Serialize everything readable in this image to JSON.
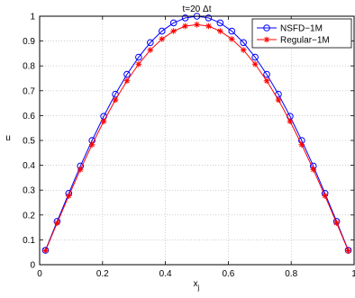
{
  "chart_data": {
    "type": "line",
    "title": "t=20 Δt",
    "xlabel": "x",
    "xlabel_subscript": "j",
    "ylabel": "u",
    "xlim": [
      0,
      1
    ],
    "ylim": [
      0,
      1
    ],
    "xticks": [
      0,
      0.2,
      0.4,
      0.6,
      0.8,
      1
    ],
    "yticks": [
      0,
      0.1,
      0.2,
      0.3,
      0.4,
      0.5,
      0.6,
      0.7,
      0.8,
      0.9,
      1
    ],
    "xtick_labels": [
      "0",
      "0.2",
      "0.4",
      "0.6",
      "0.8",
      "1"
    ],
    "ytick_labels": [
      "0",
      "0.1",
      "0.2",
      "0.3",
      "0.4",
      "0.5",
      "0.6",
      "0.7",
      "0.8",
      "0.9",
      "1"
    ],
    "grid": true,
    "legend_position": "top-right",
    "x": [
      0.0185,
      0.0556,
      0.0926,
      0.1296,
      0.1667,
      0.2037,
      0.2407,
      0.2778,
      0.3148,
      0.3519,
      0.3889,
      0.4259,
      0.463,
      0.5,
      0.537,
      0.5741,
      0.6111,
      0.6481,
      0.6852,
      0.7222,
      0.7593,
      0.7963,
      0.8333,
      0.8704,
      0.9074,
      0.9444,
      0.9815
    ],
    "series": [
      {
        "name": "NSFD−1M",
        "color": "#0000ff",
        "marker": "circle",
        "values": [
          0.058,
          0.174,
          0.287,
          0.397,
          0.5,
          0.597,
          0.686,
          0.766,
          0.835,
          0.894,
          0.94,
          0.973,
          0.993,
          1.0,
          0.993,
          0.973,
          0.94,
          0.894,
          0.835,
          0.766,
          0.686,
          0.597,
          0.5,
          0.397,
          0.287,
          0.174,
          0.058
        ]
      },
      {
        "name": "Regular−1M",
        "color": "#ff0000",
        "marker": "star",
        "values": [
          0.056,
          0.168,
          0.277,
          0.383,
          0.483,
          0.577,
          0.663,
          0.74,
          0.807,
          0.864,
          0.908,
          0.94,
          0.96,
          0.966,
          0.96,
          0.94,
          0.908,
          0.864,
          0.807,
          0.74,
          0.663,
          0.577,
          0.483,
          0.383,
          0.277,
          0.168,
          0.056
        ]
      }
    ]
  }
}
